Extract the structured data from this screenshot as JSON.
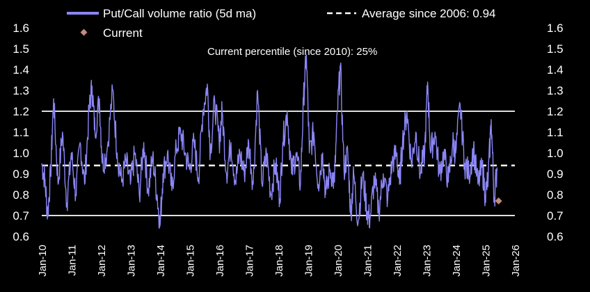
{
  "chart_data": {
    "type": "line",
    "title": "",
    "xlabel": "",
    "ylabel": "",
    "ylim": [
      0.6,
      1.6
    ],
    "yticks": [
      0.6,
      0.7,
      0.8,
      0.9,
      1.0,
      1.1,
      1.2,
      1.3,
      1.4,
      1.5,
      1.6
    ],
    "ytick_labels": [
      "0.6",
      "0.7",
      "0.8",
      "0.9",
      "1.0",
      "1.1",
      "1.2",
      "1.3",
      "1.4",
      "1.5",
      "1.6"
    ],
    "xlim": [
      2010.0,
      2026.0
    ],
    "xticks": [
      2010,
      2011,
      2012,
      2013,
      2014,
      2015,
      2016,
      2017,
      2018,
      2019,
      2020,
      2021,
      2022,
      2023,
      2024,
      2025,
      2026
    ],
    "xtick_labels": [
      "Jan-10",
      "Jan-11",
      "Jan-12",
      "Jan-13",
      "Jan-14",
      "Jan-15",
      "Jan-16",
      "Jan-17",
      "Jan-18",
      "Jan-19",
      "Jan-20",
      "Jan-21",
      "Jan-22",
      "Jan-23",
      "Jan-24",
      "Jan-25",
      "Jan-26"
    ],
    "legend": {
      "placement": "top",
      "entries": [
        {
          "label": "Put/Call volume ratio (5d ma)",
          "style": "line",
          "color": "#8b86f5"
        },
        {
          "label": "Average since 2006: 0.94",
          "style": "dashed",
          "color": "#ffffff"
        },
        {
          "label": "Current",
          "style": "diamond",
          "color": "#c48a7d"
        }
      ]
    },
    "annotation": "Current percentile (since 2010): 25%",
    "reference_lines": [
      {
        "name": "upper-band",
        "y": 1.2,
        "style": "solid",
        "color": "#ffffff"
      },
      {
        "name": "average",
        "y": 0.94,
        "style": "dashed",
        "color": "#ffffff"
      },
      {
        "name": "lower-band",
        "y": 0.7,
        "style": "solid",
        "color": "#ffffff"
      }
    ],
    "current_point": {
      "x": 2025.45,
      "y": 0.77,
      "color": "#c48a7d"
    },
    "series": [
      {
        "name": "Put/Call volume ratio (5d ma)",
        "color": "#8b86f5",
        "anchors": [
          [
            2010.0,
            0.95
          ],
          [
            2010.1,
            0.88
          ],
          [
            2010.2,
            0.7
          ],
          [
            2010.3,
            0.9
          ],
          [
            2010.4,
            1.26
          ],
          [
            2010.55,
            0.85
          ],
          [
            2010.7,
            1.1
          ],
          [
            2010.85,
            0.76
          ],
          [
            2011.0,
            1.0
          ],
          [
            2011.15,
            0.8
          ],
          [
            2011.3,
            1.05
          ],
          [
            2011.45,
            0.85
          ],
          [
            2011.6,
            1.2
          ],
          [
            2011.7,
            1.32
          ],
          [
            2011.8,
            1.1
          ],
          [
            2011.95,
            1.26
          ],
          [
            2012.05,
            0.95
          ],
          [
            2012.2,
            1.0
          ],
          [
            2012.4,
            1.3
          ],
          [
            2012.55,
            1.0
          ],
          [
            2012.7,
            0.86
          ],
          [
            2012.85,
            0.96
          ],
          [
            2013.0,
            0.85
          ],
          [
            2013.15,
            1.0
          ],
          [
            2013.3,
            0.8
          ],
          [
            2013.45,
            1.05
          ],
          [
            2013.6,
            0.82
          ],
          [
            2013.75,
            0.98
          ],
          [
            2013.9,
            0.8
          ],
          [
            2014.0,
            0.65
          ],
          [
            2014.1,
            0.9
          ],
          [
            2014.25,
            1.0
          ],
          [
            2014.4,
            0.82
          ],
          [
            2014.55,
            1.02
          ],
          [
            2014.7,
            1.1
          ],
          [
            2014.85,
            1.0
          ],
          [
            2015.0,
            0.92
          ],
          [
            2015.15,
            1.05
          ],
          [
            2015.3,
            0.88
          ],
          [
            2015.45,
            1.2
          ],
          [
            2015.6,
            1.33
          ],
          [
            2015.7,
            1.0
          ],
          [
            2015.85,
            1.25
          ],
          [
            2016.0,
            1.05
          ],
          [
            2016.1,
            1.2
          ],
          [
            2016.25,
            0.9
          ],
          [
            2016.4,
            1.05
          ],
          [
            2016.55,
            0.86
          ],
          [
            2016.7,
            1.0
          ],
          [
            2016.85,
            0.9
          ],
          [
            2017.0,
            1.05
          ],
          [
            2017.15,
            0.85
          ],
          [
            2017.3,
            1.3
          ],
          [
            2017.45,
            0.85
          ],
          [
            2017.6,
            1.0
          ],
          [
            2017.75,
            0.8
          ],
          [
            2017.9,
            0.95
          ],
          [
            2018.05,
            0.78
          ],
          [
            2018.15,
            1.05
          ],
          [
            2018.3,
            1.2
          ],
          [
            2018.45,
            0.9
          ],
          [
            2018.6,
            1.0
          ],
          [
            2018.75,
            0.85
          ],
          [
            2018.85,
            1.25
          ],
          [
            2018.95,
            1.47
          ],
          [
            2019.05,
            1.0
          ],
          [
            2019.2,
            1.1
          ],
          [
            2019.35,
            0.85
          ],
          [
            2019.5,
            1.0
          ],
          [
            2019.6,
            0.8
          ],
          [
            2019.75,
            0.92
          ],
          [
            2019.9,
            0.86
          ],
          [
            2020.0,
            1.2
          ],
          [
            2020.1,
            1.42
          ],
          [
            2020.22,
            0.92
          ],
          [
            2020.35,
            1.0
          ],
          [
            2020.45,
            0.7
          ],
          [
            2020.55,
            0.9
          ],
          [
            2020.7,
            0.67
          ],
          [
            2020.85,
            0.9
          ],
          [
            2021.0,
            0.72
          ],
          [
            2021.1,
            0.68
          ],
          [
            2021.25,
            0.88
          ],
          [
            2021.4,
            0.72
          ],
          [
            2021.55,
            0.9
          ],
          [
            2021.7,
            0.78
          ],
          [
            2021.85,
            0.95
          ],
          [
            2022.0,
            1.0
          ],
          [
            2022.1,
            0.85
          ],
          [
            2022.2,
            1.05
          ],
          [
            2022.35,
            1.2
          ],
          [
            2022.5,
            0.95
          ],
          [
            2022.65,
            1.1
          ],
          [
            2022.8,
            0.9
          ],
          [
            2022.95,
            1.0
          ],
          [
            2023.05,
            1.34
          ],
          [
            2023.15,
            1.0
          ],
          [
            2023.3,
            1.1
          ],
          [
            2023.45,
            0.9
          ],
          [
            2023.6,
            1.0
          ],
          [
            2023.75,
            0.86
          ],
          [
            2023.9,
            1.05
          ],
          [
            2024.0,
            1.0
          ],
          [
            2024.15,
            1.23
          ],
          [
            2024.3,
            0.95
          ],
          [
            2024.45,
            0.9
          ],
          [
            2024.6,
            1.02
          ],
          [
            2024.75,
            0.85
          ],
          [
            2024.9,
            0.93
          ],
          [
            2025.0,
            0.8
          ],
          [
            2025.1,
            0.88
          ],
          [
            2025.2,
            1.16
          ],
          [
            2025.3,
            0.78
          ],
          [
            2025.4,
            0.93
          ]
        ]
      }
    ]
  }
}
